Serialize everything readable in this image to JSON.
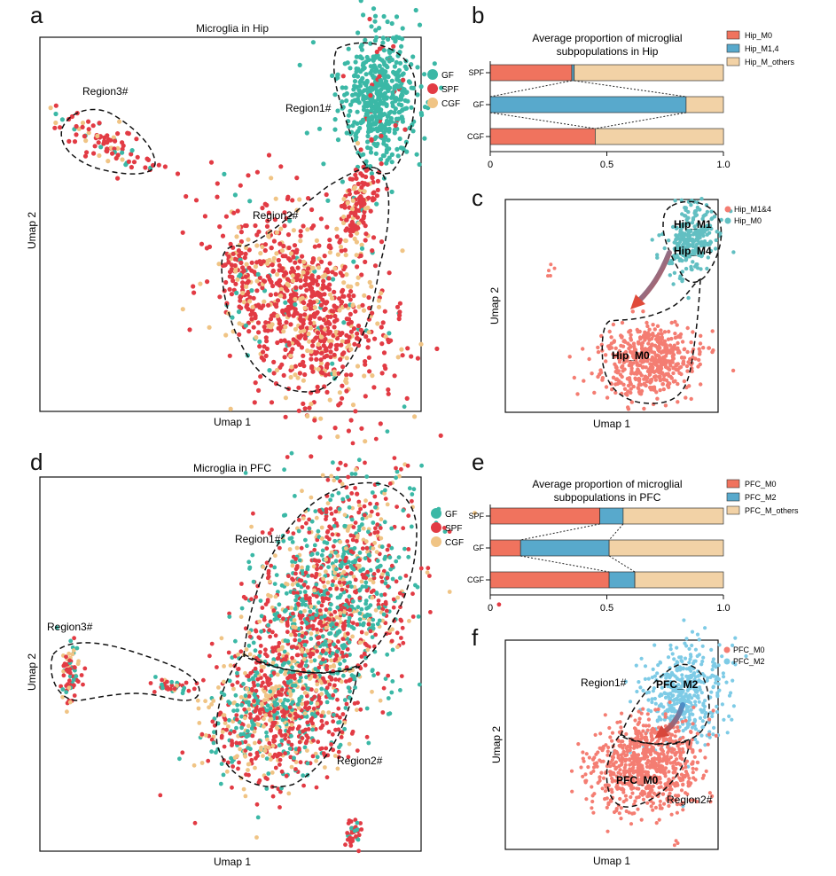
{
  "panel_letters": {
    "a": "a",
    "b": "b",
    "c": "c",
    "d": "d",
    "e": "e",
    "f": "f"
  },
  "legend_abc": [
    {
      "name": "GF",
      "color": "#3bb8a6"
    },
    {
      "name": "SPF",
      "color": "#e23b44"
    },
    {
      "name": "CGF",
      "color": "#f0c485"
    }
  ],
  "chart_data": [
    {
      "panel": "a",
      "type": "scatter",
      "title": "Microglia in Hip",
      "xlabel": "Umap 1",
      "ylabel": "Umap 2",
      "regions": [
        "Region1#",
        "Region2#",
        "Region3#"
      ],
      "series": [
        {
          "name": "GF"
        },
        {
          "name": "SPF"
        },
        {
          "name": "CGF"
        }
      ]
    },
    {
      "panel": "b",
      "type": "bar",
      "stacked": "horizontal",
      "title": "Average proportion of microglial subpopulations in Hip",
      "title_lines": [
        "Average proportion of microglial",
        "subpopulations in Hip"
      ],
      "categories": [
        "SPF",
        "GF",
        "CGF"
      ],
      "series": [
        {
          "name": "Hip_M0",
          "color": "#f0735e",
          "values": [
            0.35,
            0.0,
            0.45
          ]
        },
        {
          "name": "Hip_M1,4",
          "color": "#58a9cc",
          "values": [
            0.01,
            0.84,
            0.0
          ]
        },
        {
          "name": "Hip_M_others",
          "color": "#f2d2a6",
          "values": [
            0.64,
            0.16,
            0.55
          ]
        }
      ],
      "xlim": [
        0,
        1
      ],
      "xticks": [
        "0",
        "0.5",
        "1.0"
      ]
    },
    {
      "panel": "c",
      "type": "scatter",
      "xlabel": "Umap 1",
      "ylabel": "Umap 2",
      "series": [
        {
          "name": "Hip_M1&4",
          "color": "#f47d72"
        },
        {
          "name": "Hip_M0",
          "color": "#62bfc2"
        }
      ],
      "annotations": [
        "Hip_M1",
        "Hip_M4",
        "Hip_M0"
      ]
    },
    {
      "panel": "d",
      "type": "scatter",
      "title": "Microglia in PFC",
      "xlabel": "Umap 1",
      "ylabel": "Umap 2",
      "regions": [
        "Region1#",
        "Region2#",
        "Region3#"
      ],
      "series": [
        {
          "name": "GF"
        },
        {
          "name": "SPF"
        },
        {
          "name": "CGF"
        }
      ]
    },
    {
      "panel": "e",
      "type": "bar",
      "stacked": "horizontal",
      "title": "Average proportion of microglial subpopulations in PFC",
      "title_lines": [
        "Average proportion of microglial",
        "subpopulations in PFC"
      ],
      "categories": [
        "SPF",
        "GF",
        "CGF"
      ],
      "series": [
        {
          "name": "PFC_M0",
          "color": "#f0735e",
          "values": [
            0.47,
            0.13,
            0.51
          ]
        },
        {
          "name": "PFC_M2",
          "color": "#58a9cc",
          "values": [
            0.1,
            0.38,
            0.11
          ]
        },
        {
          "name": "PFC_M_others",
          "color": "#f2d2a6",
          "values": [
            0.43,
            0.49,
            0.38
          ]
        }
      ],
      "xlim": [
        0,
        1
      ],
      "xticks": [
        "0",
        "0.5",
        "1.0"
      ]
    },
    {
      "panel": "f",
      "type": "scatter",
      "xlabel": "Umap 1",
      "ylabel": "Umap 2",
      "series": [
        {
          "name": "PFC_M0",
          "color": "#f47d72"
        },
        {
          "name": "PFC_M2",
          "color": "#7ecbe6"
        }
      ],
      "annotations": [
        "Region1#",
        "PFC_M2",
        "PFC_M0",
        "Region2#"
      ]
    }
  ]
}
